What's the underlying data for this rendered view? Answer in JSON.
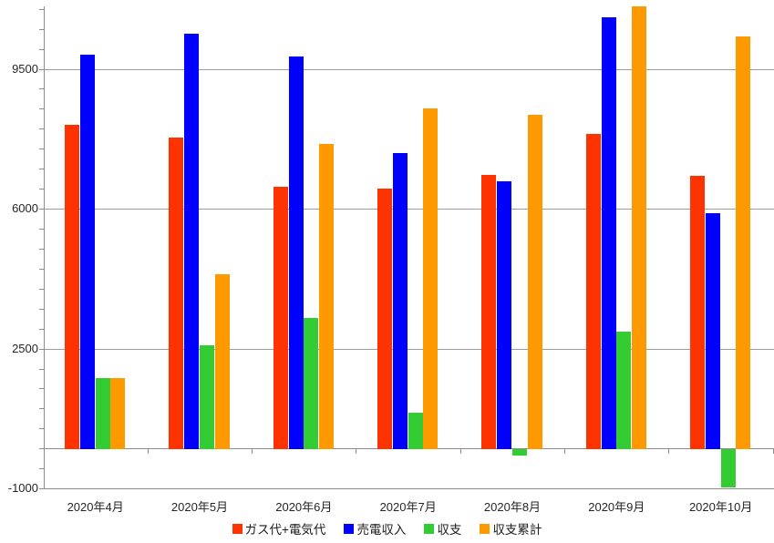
{
  "chart_data": {
    "type": "bar",
    "title": "",
    "xlabel": "",
    "ylabel": "",
    "categories": [
      "2020年4月",
      "2020年5月",
      "2020年6月",
      "2020年7月",
      "2020年8月",
      "2020年9月",
      "2020年10月"
    ],
    "series": [
      {
        "key": "gas-electric-cost",
        "name": "ガス代+電気代",
        "color": "#ff3300",
        "values": [
          8090,
          7780,
          6540,
          6500,
          6840,
          7870,
          6820
        ]
      },
      {
        "key": "electricity-sales",
        "name": "売電収入",
        "color": "#0000ff",
        "values": [
          9850,
          10370,
          9800,
          7390,
          6680,
          10790,
          5880
        ]
      },
      {
        "key": "balance",
        "name": "収支",
        "color": "#33cc33",
        "values": [
          1760,
          2590,
          3260,
          890,
          -160,
          2920,
          -940
        ]
      },
      {
        "key": "balance-cumulative",
        "name": "収支累計",
        "color": "#ff9900",
        "values": [
          1760,
          4350,
          7610,
          8500,
          8340,
          11260,
          10320
        ]
      }
    ],
    "axis": {
      "ylim": [
        -1000,
        11060
      ],
      "ytick_labeled": [
        {
          "label": "9500",
          "value": 9500
        },
        {
          "label": "6000",
          "value": 6000
        },
        {
          "label": "2500",
          "value": 2500
        },
        {
          "label": "-1000",
          "value": -1000
        }
      ],
      "minor_tick_step": 500,
      "gridline_values": [
        9500,
        6000,
        2500
      ],
      "grid": "on",
      "legend_position": "bottom"
    },
    "colors": {
      "gridline": "#9c9c9c",
      "axis": "#8c8c8c",
      "text": "#262626",
      "background": "#ffffff"
    }
  }
}
